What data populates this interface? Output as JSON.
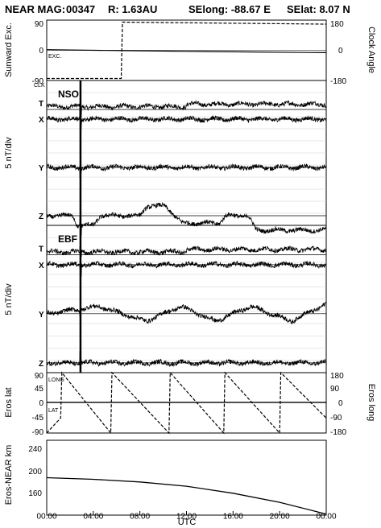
{
  "title": {
    "spacecraft": "NEAR MAG:",
    "day": "00347",
    "range": "R: 1.63AU",
    "selong": "SElong:  -88.67 E",
    "selat": "SElat:     8.07 N"
  },
  "x_axis": {
    "label": "UTC",
    "ticks": [
      "00:00",
      "04:00",
      "08:00",
      "12:00",
      "16:00",
      "20:00",
      "00:00"
    ],
    "range_hours": [
      0,
      24
    ]
  },
  "event_line_hours": 2.9,
  "colors": {
    "line": "#000000",
    "grid": "#cfcfcf",
    "background": "#ffffff"
  },
  "chart_data": [
    {
      "type": "line",
      "panel": "orientation",
      "ylabel_left": "Sunward Exc.",
      "ylabel_right": "Clock Angle",
      "left_ticks": [
        "90",
        "0",
        "-90"
      ],
      "right_ticks": [
        "180",
        "0",
        "-180"
      ],
      "ylim": [
        -90,
        90
      ],
      "series": [
        {
          "name": "EXC.",
          "style": "solid",
          "x": [
            0,
            6.5,
            12,
            18,
            24
          ],
          "y": [
            2,
            -1,
            -3,
            -5,
            -7
          ]
        },
        {
          "name": "CLK",
          "style": "dashed",
          "x": [
            0,
            6.4,
            6.5,
            24
          ],
          "y": [
            -84,
            -84,
            84,
            78
          ]
        }
      ]
    },
    {
      "type": "line",
      "panel": "NSO",
      "name": "NSO",
      "ylabel": "5 nT/div",
      "series_labels": [
        "T",
        "X",
        "Y",
        "Z"
      ],
      "baselines_div": [
        4.8,
        4.4,
        2.4,
        0.4
      ],
      "features": [
        {
          "name": "Z",
          "x": [
            0,
            2.3,
            2.6,
            4.0,
            4.6,
            8.0,
            8.6,
            10.2,
            11.6,
            14.8,
            15.4,
            17.3,
            18.0,
            24
          ],
          "y_nT": [
            0,
            0,
            -2,
            -2,
            0,
            0,
            2,
            2,
            -1.5,
            -1.5,
            0,
            0,
            -3,
            -3
          ]
        }
      ]
    },
    {
      "type": "line",
      "panel": "EBF",
      "name": "EBF",
      "ylabel": "5 nT/div",
      "series_labels": [
        "T",
        "X",
        "Y",
        "Z"
      ],
      "baselines_div": [
        4.8,
        4.4,
        2.4,
        0.4
      ],
      "features": [
        {
          "name": "Y",
          "x": [
            0,
            4.5,
            8.5,
            11.5,
            14.5,
            17.5,
            21,
            24
          ],
          "y_nT": [
            0,
            1.5,
            -1.5,
            1.5,
            -1.5,
            1.5,
            -1.5,
            2
          ]
        }
      ]
    },
    {
      "type": "line",
      "panel": "eros_position",
      "ylabel_left": "Eros lat",
      "ylabel_right": "Eros long",
      "left_ticks": [
        "90",
        "45",
        "0",
        "-45",
        "-90"
      ],
      "right_ticks": [
        "180",
        "90",
        "0",
        "-90",
        "-180"
      ],
      "ylim": [
        -90,
        90
      ],
      "series": [
        {
          "name": "LAT",
          "style": "solid",
          "x": [
            0,
            24
          ],
          "y": [
            2,
            2
          ]
        },
        {
          "name": "LONG",
          "style": "dashed",
          "x": [
            0,
            1.2,
            1.3,
            5.5,
            5.6,
            10.5,
            10.6,
            15.2,
            15.3,
            20.0,
            20.1,
            24
          ],
          "y": [
            -180,
            -90,
            180,
            -180,
            180,
            -180,
            180,
            -180,
            180,
            -180,
            180,
            -90
          ]
        }
      ]
    },
    {
      "type": "line",
      "panel": "range",
      "ylabel": "Eros-NEAR km",
      "ticks": [
        "240",
        "200",
        "160"
      ],
      "ylim": [
        120,
        260
      ],
      "series": [
        {
          "name": "",
          "style": "solid",
          "x": [
            0,
            4,
            8,
            12,
            16,
            20,
            24
          ],
          "y": [
            190,
            187,
            182,
            174,
            161,
            144,
            122
          ]
        }
      ]
    }
  ]
}
